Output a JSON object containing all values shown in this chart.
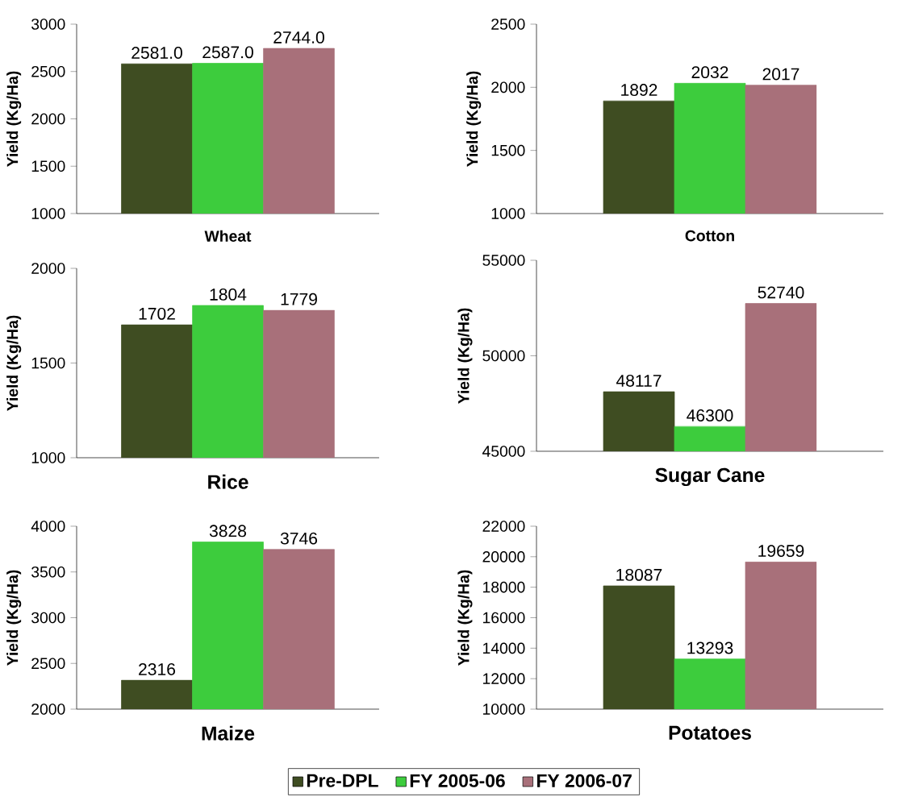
{
  "chart_data": [
    {
      "type": "bar",
      "xlabel": "Wheat",
      "ylabel": "Yield (Kg/Ha)",
      "categories": [
        null
      ],
      "ylim": [
        1000,
        3000
      ],
      "yticks": [
        1000,
        1500,
        2000,
        2500,
        3000
      ],
      "series": [
        {
          "color": "#3f4d22",
          "values": [
            2581.0
          ],
          "value_labels": [
            "2581.0"
          ]
        },
        {
          "color": "#3dcc3d",
          "values": [
            2587.0
          ],
          "value_labels": [
            "2587.0"
          ]
        },
        {
          "color": "#a8707a",
          "values": [
            2744.0
          ],
          "value_labels": [
            "2744.0"
          ]
        }
      ]
    },
    {
      "type": "bar",
      "xlabel": "Cotton",
      "ylabel": "Yield (Kg/Ha)",
      "categories": [
        null
      ],
      "ylim": [
        1000,
        2500
      ],
      "yticks": [
        1000,
        1500,
        2000,
        2500
      ],
      "series": [
        {
          "color": "#3f4d22",
          "values": [
            1892
          ],
          "value_labels": [
            "1892"
          ]
        },
        {
          "color": "#3dcc3d",
          "values": [
            2032
          ],
          "value_labels": [
            "2032"
          ]
        },
        {
          "color": "#a8707a",
          "values": [
            2017
          ],
          "value_labels": [
            "2017"
          ]
        }
      ]
    },
    {
      "type": "bar",
      "xlabel": "Rice",
      "ylabel": "Yield (Kg/Ha)",
      "categories": [
        null
      ],
      "ylim": [
        1000,
        2000
      ],
      "yticks": [
        1000,
        1500,
        2000
      ],
      "series": [
        {
          "color": "#3f4d22",
          "values": [
            1702
          ],
          "value_labels": [
            "1702"
          ]
        },
        {
          "color": "#3dcc3d",
          "values": [
            1804
          ],
          "value_labels": [
            "1804"
          ]
        },
        {
          "color": "#a8707a",
          "values": [
            1779
          ],
          "value_labels": [
            "1779"
          ]
        }
      ]
    },
    {
      "type": "bar",
      "xlabel": "Sugar Cane",
      "ylabel": "Yield (Kg/Ha)",
      "categories": [
        null
      ],
      "ylim": [
        45000,
        55000
      ],
      "yticks": [
        45000,
        50000,
        55000
      ],
      "series": [
        {
          "color": "#3f4d22",
          "values": [
            48117
          ],
          "value_labels": [
            "48117"
          ]
        },
        {
          "color": "#3dcc3d",
          "values": [
            46300
          ],
          "value_labels": [
            "46300"
          ]
        },
        {
          "color": "#a8707a",
          "values": [
            52740
          ],
          "value_labels": [
            "52740"
          ]
        }
      ]
    },
    {
      "type": "bar",
      "xlabel": "Maize",
      "ylabel": "Yield (Kg/Ha)",
      "categories": [
        null
      ],
      "ylim": [
        2000,
        4000
      ],
      "yticks": [
        2000,
        2500,
        3000,
        3500,
        4000
      ],
      "series": [
        {
          "color": "#3f4d22",
          "values": [
            2316
          ],
          "value_labels": [
            "2316"
          ]
        },
        {
          "color": "#3dcc3d",
          "values": [
            3828
          ],
          "value_labels": [
            "3828"
          ]
        },
        {
          "color": "#a8707a",
          "values": [
            3746
          ],
          "value_labels": [
            "3746"
          ]
        }
      ]
    },
    {
      "type": "bar",
      "xlabel": "Potatoes",
      "ylabel": "Yield (Kg/Ha)",
      "categories": [
        null
      ],
      "ylim": [
        10000,
        22000
      ],
      "yticks": [
        10000,
        12000,
        14000,
        16000,
        18000,
        20000,
        22000
      ],
      "legend": "bottom",
      "series": [
        {
          "name": "Pre-DPL",
          "color": "#3f4d22",
          "values": [
            18087
          ],
          "value_labels": [
            "18087"
          ]
        },
        {
          "name": "FY 2005-06",
          "color": "#3dcc3d",
          "values": [
            13293
          ],
          "value_labels": [
            "13293"
          ]
        },
        {
          "name": "FY 2006-07",
          "color": "#a8707a",
          "values": [
            19659
          ],
          "value_labels": [
            "19659"
          ]
        }
      ]
    }
  ]
}
